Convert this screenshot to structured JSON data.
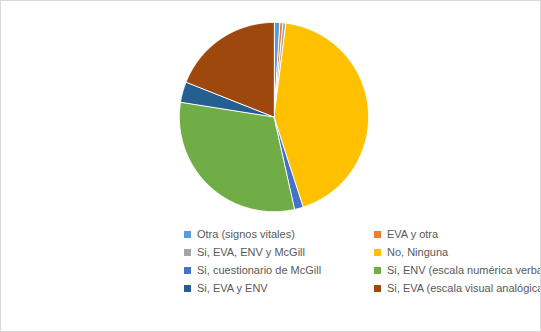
{
  "chart_data": {
    "type": "pie",
    "categories": [
      "Otra (signos vitales)",
      "EVA y otra",
      "Si, EVA, ENV y McGill",
      "No, Ninguna",
      "Si, cuestionario de McGill",
      "Si, ENV (escala numérica verbal)",
      "Si, EVA y ENV",
      "Si, EVA (escala visual analógica)"
    ],
    "values": [
      1,
      0.5,
      0.5,
      43,
      1.5,
      31,
      3.5,
      19
    ],
    "colors": [
      "#5b9bd5",
      "#ed7d31",
      "#a5a5a5",
      "#ffc000",
      "#4472c4",
      "#70ad47",
      "#255e91",
      "#9e480e"
    ],
    "legend": "bottom"
  }
}
